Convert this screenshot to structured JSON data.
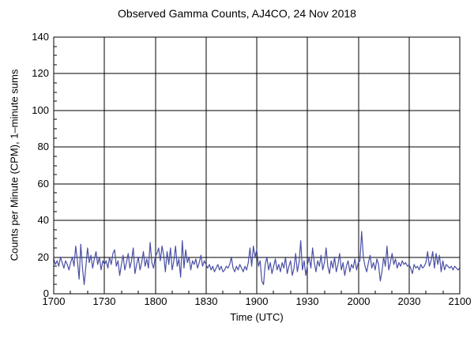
{
  "chart": {
    "title": "Observed Gamma Counts, AJ4CO, 24 Nov 2018",
    "xlabel": "Time (UTC)",
    "ylabel": "Counts per Minute (CPM), 1–minute sums"
  },
  "chart_data": {
    "type": "line",
    "title": "Observed Gamma Counts, AJ4CO, 24 Nov 2018",
    "xlabel": "Time (UTC)",
    "ylabel": "Counts per Minute (CPM), 1–minute sums",
    "grid": true,
    "legend": "none",
    "ylim": [
      0,
      140
    ],
    "y_major_ticks": [
      0,
      20,
      40,
      60,
      80,
      100,
      120,
      140
    ],
    "y_minor_step": 5,
    "xlim_minutes": [
      0,
      240
    ],
    "x_tick_labels": [
      "1700",
      "1730",
      "1800",
      "1830",
      "1900",
      "1930",
      "2000",
      "2030",
      "2100"
    ],
    "x_tick_minutes": [
      0,
      30,
      60,
      90,
      120,
      150,
      180,
      210,
      240
    ],
    "x_minor_step_minutes": 10,
    "line_color": "#4a4fa5",
    "axis_color": "#000000",
    "background_color": "#ffffff",
    "series": [
      {
        "name": "gamma_counts_cpm",
        "start_time_utc": "1700",
        "sample_interval_minutes": 1,
        "values": [
          19,
          16,
          18,
          15,
          20,
          17,
          14,
          18,
          16,
          13,
          17,
          20,
          15,
          26,
          18,
          8,
          27,
          14,
          5,
          15,
          25,
          17,
          21,
          14,
          19,
          23,
          16,
          20,
          13,
          18,
          16,
          18,
          14,
          20,
          16,
          22,
          24,
          15,
          18,
          10,
          16,
          21,
          13,
          17,
          22,
          14,
          18,
          25,
          11,
          16,
          20,
          13,
          17,
          23,
          15,
          19,
          14,
          28,
          17,
          14,
          20,
          22,
          25,
          18,
          26,
          21,
          12,
          23,
          16,
          25,
          13,
          18,
          26,
          15,
          19,
          9,
          29,
          14,
          24,
          17,
          20,
          13,
          18,
          16,
          19,
          14,
          17,
          21,
          15,
          18,
          16,
          14,
          16,
          13,
          15,
          12,
          14,
          16,
          13,
          15,
          12,
          13,
          15,
          14,
          16,
          20,
          14,
          12,
          15,
          13,
          16,
          14,
          12,
          15,
          13,
          17,
          25,
          15,
          26,
          20,
          24,
          15,
          18,
          7,
          5,
          16,
          20,
          13,
          17,
          11,
          15,
          19,
          13,
          16,
          12,
          17,
          14,
          20,
          11,
          15,
          18,
          10,
          14,
          22,
          12,
          17,
          29,
          13,
          18,
          10,
          16,
          20,
          14,
          25,
          17,
          12,
          18,
          15,
          21,
          13,
          17,
          25,
          15,
          11,
          18,
          14,
          20,
          12,
          16,
          22,
          13,
          17,
          10,
          15,
          18,
          12,
          16,
          14,
          19,
          13,
          17,
          18,
          34,
          20,
          15,
          12,
          17,
          21,
          14,
          17,
          13,
          19,
          16,
          7,
          12,
          20,
          15,
          26,
          13,
          17,
          22,
          16,
          19,
          14,
          17,
          15,
          18,
          16,
          17,
          15,
          16,
          14,
          11,
          16,
          14,
          15,
          13,
          16,
          14,
          15,
          17,
          23,
          15,
          18,
          23,
          14,
          22,
          16,
          21,
          12,
          18,
          13,
          16,
          15,
          14,
          15,
          13,
          15,
          14,
          13,
          14
        ]
      }
    ]
  }
}
